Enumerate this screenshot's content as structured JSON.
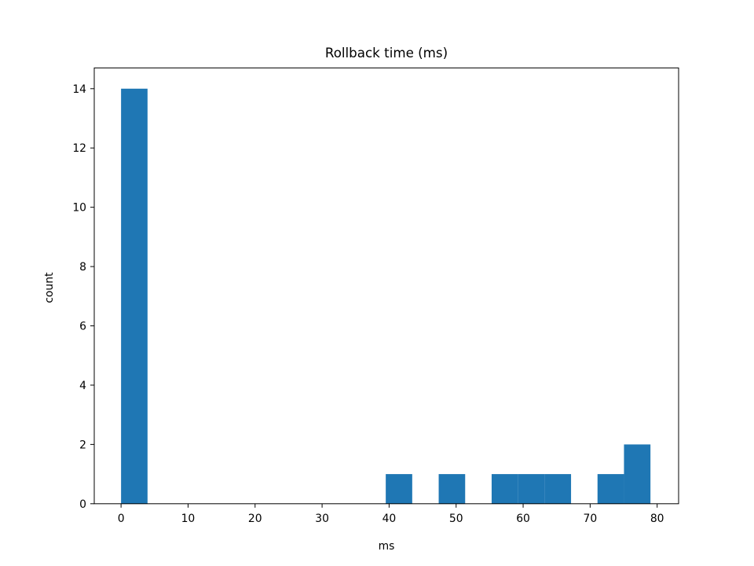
{
  "chart_data": {
    "type": "bar",
    "title": "Rollback time (ms)",
    "xlabel": "ms",
    "ylabel": "count",
    "xlim": [
      -4.0,
      83.2
    ],
    "ylim": [
      0,
      14.7
    ],
    "xticks": [
      0,
      10,
      20,
      30,
      40,
      50,
      60,
      70,
      80
    ],
    "yticks": [
      0,
      2,
      4,
      6,
      8,
      10,
      12,
      14
    ],
    "grid": false,
    "bar_color": "#1f77b4",
    "bins": [
      {
        "start": 0.0,
        "end": 3.95,
        "count": 14
      },
      {
        "start": 3.95,
        "end": 7.9,
        "count": 0
      },
      {
        "start": 7.9,
        "end": 11.85,
        "count": 0
      },
      {
        "start": 11.85,
        "end": 15.8,
        "count": 0
      },
      {
        "start": 15.8,
        "end": 19.75,
        "count": 0
      },
      {
        "start": 19.75,
        "end": 23.7,
        "count": 0
      },
      {
        "start": 23.7,
        "end": 27.65,
        "count": 0
      },
      {
        "start": 27.65,
        "end": 31.6,
        "count": 0
      },
      {
        "start": 31.6,
        "end": 35.55,
        "count": 0
      },
      {
        "start": 35.55,
        "end": 39.5,
        "count": 0
      },
      {
        "start": 39.5,
        "end": 43.45,
        "count": 1
      },
      {
        "start": 43.45,
        "end": 47.4,
        "count": 0
      },
      {
        "start": 47.4,
        "end": 51.35,
        "count": 1
      },
      {
        "start": 51.35,
        "end": 55.3,
        "count": 0
      },
      {
        "start": 55.3,
        "end": 59.25,
        "count": 1
      },
      {
        "start": 59.25,
        "end": 63.2,
        "count": 1
      },
      {
        "start": 63.2,
        "end": 67.15,
        "count": 1
      },
      {
        "start": 67.15,
        "end": 71.1,
        "count": 0
      },
      {
        "start": 71.1,
        "end": 75.05,
        "count": 1
      },
      {
        "start": 75.05,
        "end": 79.0,
        "count": 2
      }
    ]
  }
}
